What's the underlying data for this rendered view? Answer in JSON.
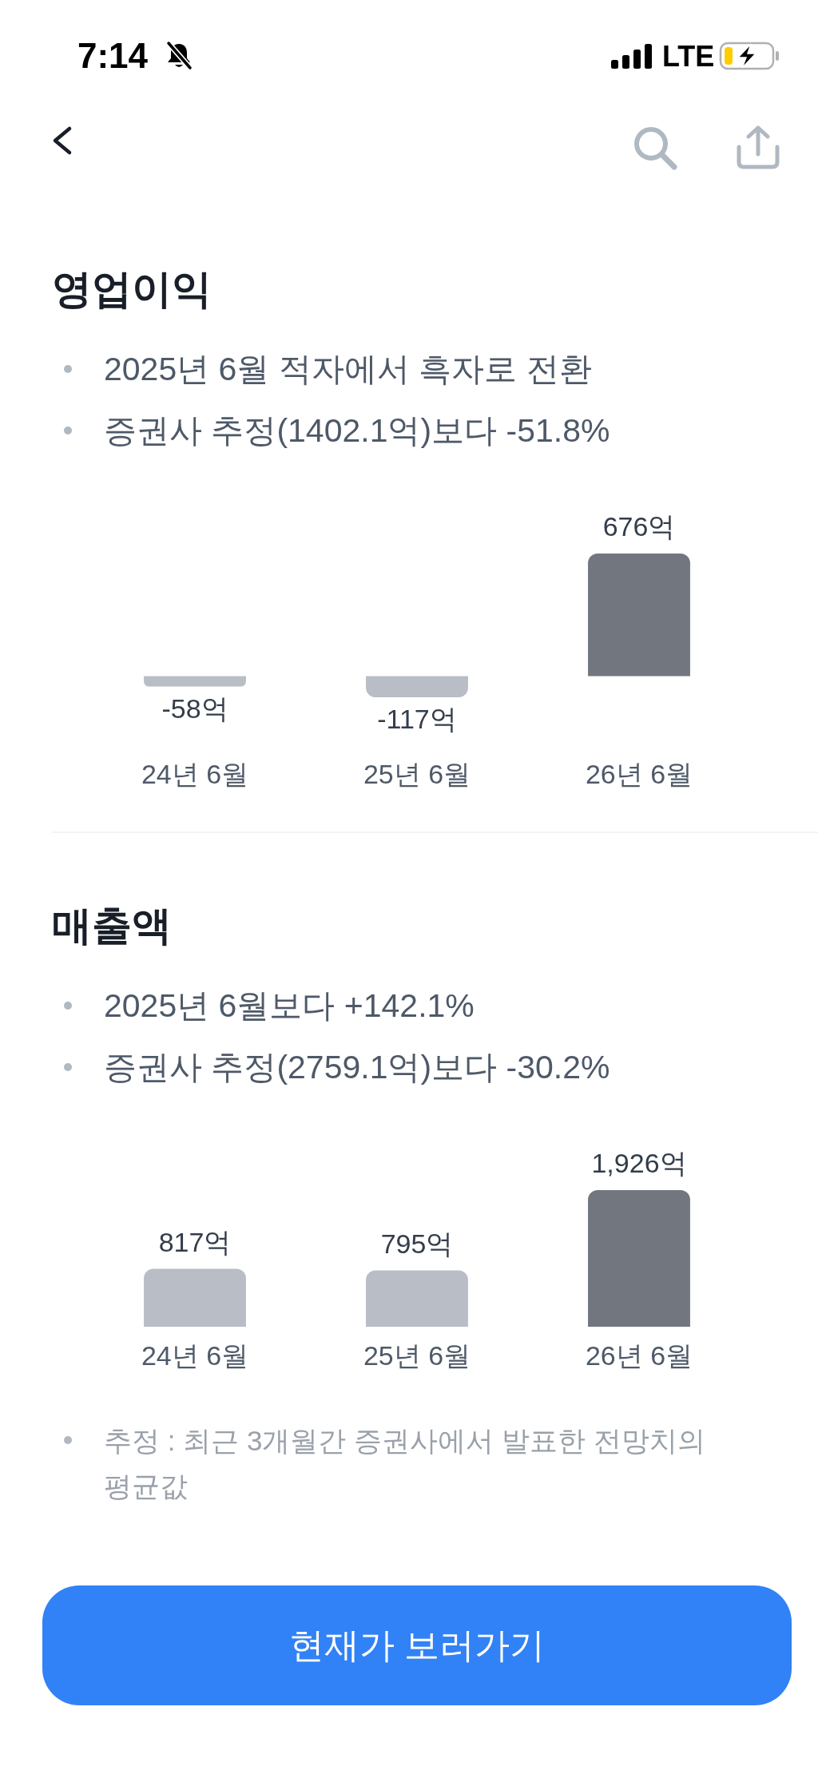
{
  "chart_data": [
    {
      "type": "other",
      "annotations": [
        "7:14",
        "LTE"
      ]
    },
    {
      "type": "bar",
      "title": "영업이익",
      "annotations": [
        "2025년 6월 적자에서 흑자로 전환",
        "증권사 추정(1402.1억)보다 -51.8%"
      ],
      "categories": [
        "24년 6월",
        "25년 6월",
        "26년 6월"
      ],
      "values": [
        -58,
        -117,
        676
      ],
      "colors": [
        "#b8bdc6",
        "#b8bdc6",
        "#71767f"
      ],
      "value_labels": [
        "-58억",
        "-117억",
        "676억"
      ],
      "tick_labels": "x"
    },
    {
      "type": "bar",
      "title": "매출액",
      "annotations": [
        "2025년 6월보다 +142.1%",
        "증권사 추정(2759.1억)보다 -30.2%"
      ],
      "categories": [
        "24년 6월",
        "25년 6월",
        "26년 6월"
      ],
      "values": [
        817,
        795,
        1926
      ],
      "colors": [
        "#b8bdc6",
        "#b8bdc6",
        "#71767f"
      ],
      "value_labels": [
        "817억",
        "795억",
        "1,926억"
      ],
      "tick_labels": "x"
    },
    {
      "type": "other",
      "annotations": [
        "추정 : 최근 3개월간 증권사에서 발표한 전망치의 평균값",
        "현재가 보러가기"
      ]
    }
  ]
}
